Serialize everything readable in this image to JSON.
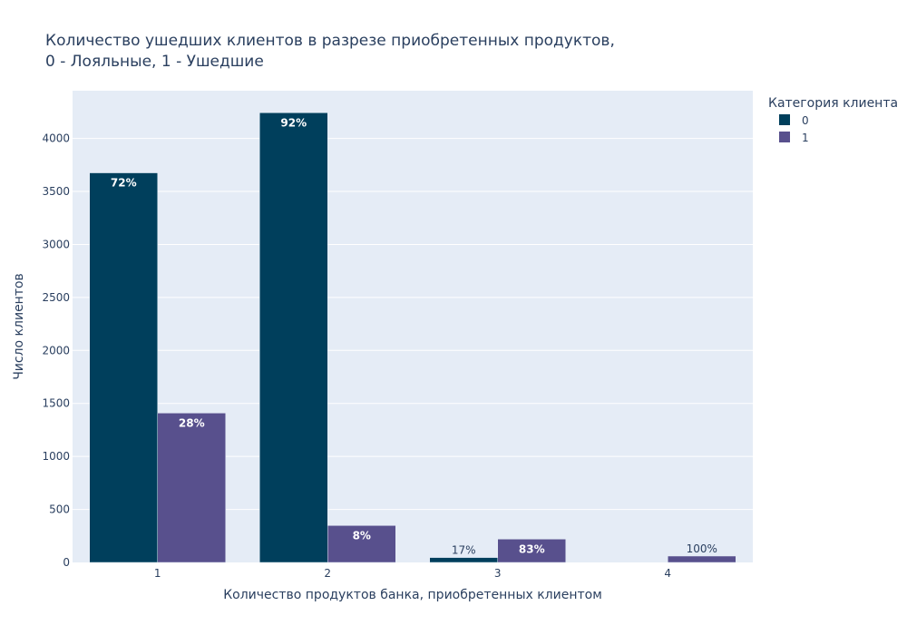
{
  "chart_data": {
    "type": "bar",
    "title_lines": [
      "Количество ушедших клиентов в разрезе приобретенных продуктов,",
      "0 - Лояльные, 1 - Ушедшие"
    ],
    "xlabel": "Количество продуктов банка, приобретенных клиентом",
    "ylabel": "Число клиентов",
    "categories": [
      "1",
      "2",
      "3",
      "4"
    ],
    "ylim": [
      0,
      4450
    ],
    "yticks": [
      0,
      500,
      1000,
      1500,
      2000,
      2500,
      3000,
      3500,
      4000
    ],
    "grid": true,
    "legend": {
      "title": "Категория клиента",
      "placement": "top-right"
    },
    "series": [
      {
        "name": "0",
        "color": "#003f5c",
        "values": [
          3675,
          4242,
          46,
          null
        ],
        "labels": [
          "72%",
          "92%",
          "17%",
          null
        ]
      },
      {
        "name": "1",
        "color": "#58508d",
        "values": [
          1409,
          348,
          220,
          60
        ],
        "labels": [
          "28%",
          "8%",
          "83%",
          "100%"
        ]
      }
    ]
  }
}
